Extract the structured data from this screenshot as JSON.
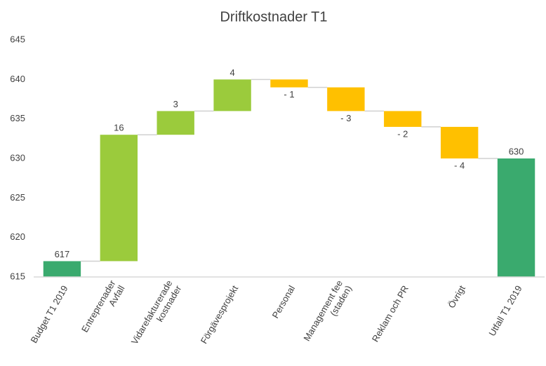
{
  "chart_data": {
    "type": "waterfall",
    "title": "Driftkostnader T1",
    "categories": [
      "Budget T1 2019",
      "Entreprenader\nAvfall",
      "Vidarefakturerade\nkostnader",
      "Förgävesprojekt",
      "Personal",
      "Management fee\n(staden)",
      "Reklam och PR",
      "Övrigt",
      "Utfall T1 2019"
    ],
    "values": [
      617,
      16,
      3,
      4,
      -1,
      -3,
      -2,
      -4,
      630
    ],
    "value_labels": [
      "617",
      "16",
      "3",
      "4",
      "- 1",
      "- 3",
      "- 2",
      "- 4",
      "630"
    ],
    "colors": [
      "#3aaa6e",
      "#9bcb3c",
      "#9bcb3c",
      "#9bcb3c",
      "#ffc000",
      "#ffc000",
      "#ffc000",
      "#ffc000",
      "#3aaa6e"
    ],
    "ylim": [
      615,
      645
    ],
    "yticks": [
      615,
      620,
      625,
      630,
      635,
      640,
      645
    ],
    "grid": false
  }
}
